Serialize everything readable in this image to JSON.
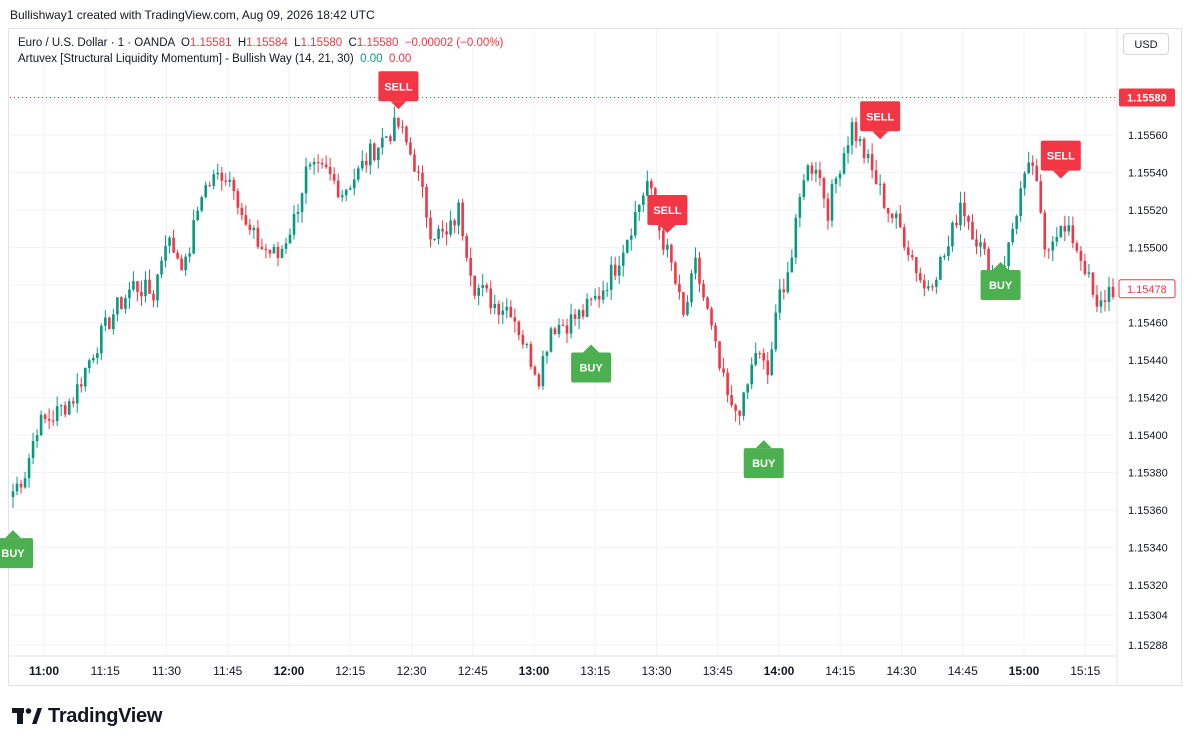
{
  "header": {
    "created_text": "Bullishway1 created with TradingView.com, Aug 09, 2026 18:42 UTC"
  },
  "legend": {
    "symbol": "Euro / U.S. Dollar · 1 · OANDA",
    "o_label": "O",
    "o_value": "1.15581",
    "h_label": "H",
    "h_value": "1.15584",
    "l_label": "L",
    "l_value": "1.15580",
    "c_label": "C",
    "c_value": "1.15580",
    "change": "−0.00002 (−0.00%)",
    "indicator_name": "Artuvex [Structural Liquidity Momentum] - Bullish Way (14, 21, 30)",
    "indicator_val1": "0.00",
    "indicator_val2": "0.00"
  },
  "currency_button": "USD",
  "branding": {
    "logo_text": "TradingView"
  },
  "colors": {
    "up": "#089981",
    "down": "#f23645",
    "buy_signal": "#4caf50",
    "sell_signal": "#f23645",
    "grid": "#f0f3fa",
    "text": "#131722"
  },
  "chart_data": {
    "type": "candlestick",
    "symbol": "EURUSD",
    "ylim": [
      1.1528,
      1.1563
    ],
    "y_ticks": [
      "1.15560",
      "1.15540",
      "1.15520",
      "1.15500",
      "1.15480",
      "1.15460",
      "1.15440",
      "1.15420",
      "1.15400",
      "1.15380",
      "1.15360",
      "1.15340",
      "1.15320",
      "1.15304",
      "1.15288"
    ],
    "x_ticks": [
      {
        "label": "11:00",
        "bold": true
      },
      {
        "label": "11:15",
        "bold": false
      },
      {
        "label": "11:30",
        "bold": false
      },
      {
        "label": "11:45",
        "bold": false
      },
      {
        "label": "12:00",
        "bold": true
      },
      {
        "label": "12:15",
        "bold": false
      },
      {
        "label": "12:30",
        "bold": false
      },
      {
        "label": "12:45",
        "bold": false
      },
      {
        "label": "13:00",
        "bold": true
      },
      {
        "label": "13:15",
        "bold": false
      },
      {
        "label": "13:30",
        "bold": false
      },
      {
        "label": "13:45",
        "bold": false
      },
      {
        "label": "14:00",
        "bold": true
      },
      {
        "label": "14:15",
        "bold": false
      },
      {
        "label": "14:30",
        "bold": false
      },
      {
        "label": "14:45",
        "bold": false
      },
      {
        "label": "15:00",
        "bold": true
      },
      {
        "label": "15:15",
        "bold": false
      }
    ],
    "price_labels": [
      {
        "text": "1.15580",
        "value": 1.1558,
        "kind": "current"
      },
      {
        "text": "1.15478",
        "value": 1.15478,
        "kind": "last"
      }
    ],
    "signals": [
      {
        "text": "BUY",
        "type": "buy",
        "bar": 0,
        "price": 1.15345
      },
      {
        "text": "SELL",
        "type": "sell",
        "bar": 96,
        "price": 1.15578
      },
      {
        "text": "BUY",
        "type": "buy",
        "bar": 144,
        "price": 1.15444
      },
      {
        "text": "SELL",
        "type": "sell",
        "bar": 163,
        "price": 1.15512
      },
      {
        "text": "BUY",
        "type": "buy",
        "bar": 187,
        "price": 1.15393
      },
      {
        "text": "SELL",
        "type": "sell",
        "bar": 216,
        "price": 1.15562
      },
      {
        "text": "BUY",
        "type": "buy",
        "bar": 246,
        "price": 1.15488
      },
      {
        "text": "SELL",
        "type": "sell",
        "bar": 261,
        "price": 1.15541
      }
    ],
    "anchors": [
      [
        0,
        1.1537
      ],
      [
        3,
        1.1538
      ],
      [
        6,
        1.15405
      ],
      [
        10,
        1.1541
      ],
      [
        15,
        1.1542
      ],
      [
        20,
        1.15445
      ],
      [
        25,
        1.15465
      ],
      [
        30,
        1.1548
      ],
      [
        35,
        1.15475
      ],
      [
        38,
        1.15505
      ],
      [
        43,
        1.1549
      ],
      [
        47,
        1.1553
      ],
      [
        52,
        1.1554
      ],
      [
        55,
        1.15535
      ],
      [
        58,
        1.1551
      ],
      [
        62,
        1.155
      ],
      [
        66,
        1.15495
      ],
      [
        70,
        1.15515
      ],
      [
        73,
        1.1554
      ],
      [
        78,
        1.1554
      ],
      [
        82,
        1.1553
      ],
      [
        86,
        1.1554
      ],
      [
        89,
        1.1555
      ],
      [
        93,
        1.1556
      ],
      [
        96,
        1.15565
      ],
      [
        100,
        1.15545
      ],
      [
        104,
        1.1551
      ],
      [
        108,
        1.15505
      ],
      [
        111,
        1.1552
      ],
      [
        115,
        1.1548
      ],
      [
        120,
        1.1547
      ],
      [
        124,
        1.15468
      ],
      [
        128,
        1.15445
      ],
      [
        131,
        1.15432
      ],
      [
        134,
        1.15458
      ],
      [
        138,
        1.1546
      ],
      [
        142,
        1.15465
      ],
      [
        146,
        1.15475
      ],
      [
        150,
        1.1549
      ],
      [
        154,
        1.15512
      ],
      [
        158,
        1.15535
      ],
      [
        161,
        1.1551
      ],
      [
        164,
        1.1549
      ],
      [
        167,
        1.15462
      ],
      [
        170,
        1.1549
      ],
      [
        173,
        1.15465
      ],
      [
        176,
        1.15435
      ],
      [
        179,
        1.15412
      ],
      [
        182,
        1.15417
      ],
      [
        185,
        1.15445
      ],
      [
        188,
        1.15432
      ],
      [
        191,
        1.15475
      ],
      [
        194,
        1.15495
      ],
      [
        197,
        1.1554
      ],
      [
        200,
        1.15545
      ],
      [
        203,
        1.1552
      ],
      [
        206,
        1.15545
      ],
      [
        209,
        1.15565
      ],
      [
        212,
        1.1555
      ],
      [
        215,
        1.15535
      ],
      [
        218,
        1.1552
      ],
      [
        221,
        1.1551
      ],
      [
        224,
        1.15495
      ],
      [
        227,
        1.15478
      ],
      [
        230,
        1.15488
      ],
      [
        233,
        1.155
      ],
      [
        236,
        1.15525
      ],
      [
        239,
        1.1551
      ],
      [
        242,
        1.15495
      ],
      [
        245,
        1.1548
      ],
      [
        248,
        1.155
      ],
      [
        251,
        1.1553
      ],
      [
        254,
        1.15545
      ],
      [
        257,
        1.155
      ],
      [
        260,
        1.1551
      ],
      [
        264,
        1.15505
      ],
      [
        267,
        1.1549
      ],
      [
        270,
        1.15465
      ],
      [
        273,
        1.15478
      ]
    ]
  }
}
